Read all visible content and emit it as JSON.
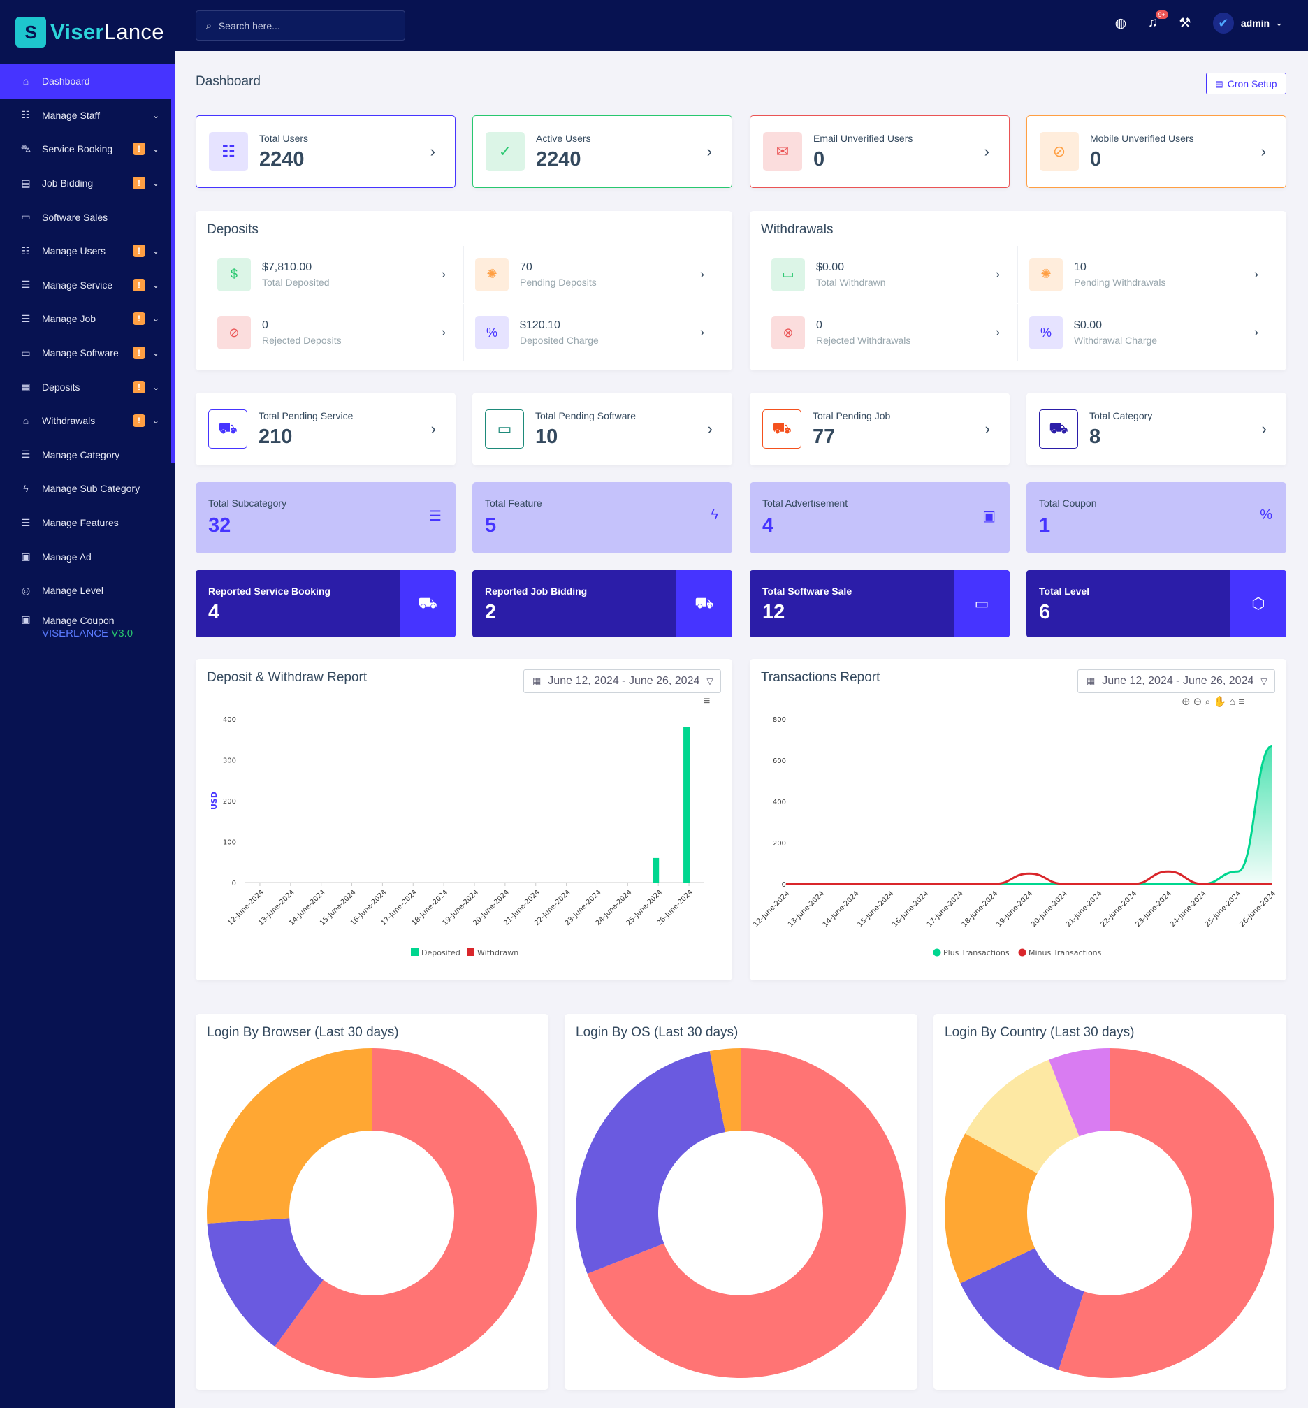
{
  "brand": {
    "logo_letter": "S",
    "name_a": "Viser",
    "name_b": "Lance",
    "version_a": "VISERLANCE",
    "version_b": "V3.0"
  },
  "sidebar": {
    "items": [
      {
        "label": "Dashboard",
        "icon": "home-icon",
        "glyph": "⌂",
        "badge": "",
        "chevron": false,
        "active": true
      },
      {
        "label": "Manage Staff",
        "icon": "users-icon",
        "glyph": "☷",
        "badge": "",
        "chevron": true
      },
      {
        "label": "Service Booking",
        "icon": "basket-icon",
        "glyph": "⛍",
        "badge": "!",
        "chevron": true
      },
      {
        "label": "Job Bidding",
        "icon": "briefcase-icon",
        "glyph": "▤",
        "badge": "!",
        "chevron": true
      },
      {
        "label": "Software Sales",
        "icon": "laptop-icon",
        "glyph": "▭",
        "badge": "",
        "chevron": false
      },
      {
        "label": "Manage Users",
        "icon": "users-icon",
        "glyph": "☷",
        "badge": "!",
        "chevron": true
      },
      {
        "label": "Manage Service",
        "icon": "list-icon",
        "glyph": "☰",
        "badge": "!",
        "chevron": true
      },
      {
        "label": "Manage Job",
        "icon": "list-icon",
        "glyph": "☰",
        "badge": "!",
        "chevron": true
      },
      {
        "label": "Manage Software",
        "icon": "laptop-icon",
        "glyph": "▭",
        "badge": "!",
        "chevron": true
      },
      {
        "label": "Deposits",
        "icon": "file-icon",
        "glyph": "▦",
        "badge": "!",
        "chevron": true
      },
      {
        "label": "Withdrawals",
        "icon": "bank-icon",
        "glyph": "⌂",
        "badge": "!",
        "chevron": true
      },
      {
        "label": "Manage Category",
        "icon": "list-icon",
        "glyph": "☰",
        "badge": "",
        "chevron": false
      },
      {
        "label": "Manage Sub Category",
        "icon": "bolt-icon",
        "glyph": "ϟ",
        "badge": "",
        "chevron": false
      },
      {
        "label": "Manage Features",
        "icon": "list-icon",
        "glyph": "☰",
        "badge": "",
        "chevron": false
      },
      {
        "label": "Manage Ad",
        "icon": "ad-icon",
        "glyph": "▣",
        "badge": "",
        "chevron": false
      },
      {
        "label": "Manage Level",
        "icon": "level-icon",
        "glyph": "◎",
        "badge": "",
        "chevron": false
      },
      {
        "label": "Manage Coupon",
        "icon": "coupon-icon",
        "glyph": "▣",
        "badge": "",
        "chevron": false
      }
    ]
  },
  "header": {
    "search_placeholder": "Search here...",
    "notif_count": "9+",
    "admin_name": "admin"
  },
  "page": {
    "title": "Dashboard",
    "cron_label": "Cron Setup"
  },
  "users_widgets": [
    {
      "title": "Total Users",
      "value": "2240",
      "color": "#4634ff",
      "bg": "#e6e3ff",
      "icon": "users-icon",
      "glyph": "☷"
    },
    {
      "title": "Active Users",
      "value": "2240",
      "color": "#28c76f",
      "bg": "#dcf5e7",
      "icon": "user-check-icon",
      "glyph": "✓"
    },
    {
      "title": "Email Unverified Users",
      "value": "0",
      "color": "#ea5455",
      "bg": "#fbdddd",
      "icon": "envelope-icon",
      "glyph": "✉"
    },
    {
      "title": "Mobile Unverified Users",
      "value": "0",
      "color": "#ff9f43",
      "bg": "#ffeddc",
      "icon": "mobile-slash-icon",
      "glyph": "⊘"
    }
  ],
  "deposits": {
    "title": "Deposits",
    "items": [
      {
        "value": "$7,810.00",
        "label": "Total Deposited",
        "color": "#28c76f",
        "bg": "#dcf5e7",
        "icon": "hand-money-icon",
        "glyph": "$"
      },
      {
        "value": "70",
        "label": "Pending Deposits",
        "color": "#ff9f43",
        "bg": "#ffeddc",
        "icon": "spinner-icon",
        "glyph": "✺"
      },
      {
        "value": "0",
        "label": "Rejected Deposits",
        "color": "#ea5455",
        "bg": "#fbdddd",
        "icon": "ban-icon",
        "glyph": "⊘"
      },
      {
        "value": "$120.10",
        "label": "Deposited Charge",
        "color": "#4634ff",
        "bg": "#e6e3ff",
        "icon": "percent-icon",
        "glyph": "%"
      }
    ]
  },
  "withdrawals": {
    "title": "Withdrawals",
    "items": [
      {
        "value": "$0.00",
        "label": "Total Withdrawn",
        "color": "#28c76f",
        "bg": "#dcf5e7",
        "icon": "card-icon",
        "glyph": "▭"
      },
      {
        "value": "10",
        "label": "Pending Withdrawals",
        "color": "#ff9f43",
        "bg": "#ffeddc",
        "icon": "spinner-icon",
        "glyph": "✺"
      },
      {
        "value": "0",
        "label": "Rejected Withdrawals",
        "color": "#ea5455",
        "bg": "#fbdddd",
        "icon": "times-circle-icon",
        "glyph": "⊗"
      },
      {
        "value": "$0.00",
        "label": "Withdrawal Charge",
        "color": "#4634ff",
        "bg": "#e6e3ff",
        "icon": "percent-icon",
        "glyph": "%"
      }
    ]
  },
  "pending_widgets": [
    {
      "title": "Total Pending Service",
      "value": "210",
      "color": "#4634ff",
      "icon": "car-icon",
      "glyph": "⛟"
    },
    {
      "title": "Total Pending Software",
      "value": "10",
      "color": "#1e8a7a",
      "icon": "laptop-icon",
      "glyph": "▭"
    },
    {
      "title": "Total Pending Job",
      "value": "77",
      "color": "#f4511e",
      "icon": "car-icon",
      "glyph": "⛟"
    },
    {
      "title": "Total Category",
      "value": "8",
      "color": "#2b1da8",
      "icon": "car-icon",
      "glyph": "⛟"
    }
  ],
  "light_widgets": [
    {
      "title": "Total Subcategory",
      "value": "32",
      "icon": "list-icon",
      "glyph": "☰"
    },
    {
      "title": "Total Feature",
      "value": "5",
      "icon": "bolt-icon",
      "glyph": "ϟ"
    },
    {
      "title": "Total Advertisement",
      "value": "4",
      "icon": "ad-icon",
      "glyph": "▣"
    },
    {
      "title": "Total Coupon",
      "value": "1",
      "icon": "percent-icon",
      "glyph": "%"
    }
  ],
  "dark_widgets": [
    {
      "title": "Reported Service Booking",
      "value": "4",
      "icon": "car-icon",
      "glyph": "⛟"
    },
    {
      "title": "Reported Job Bidding",
      "value": "2",
      "icon": "car-icon",
      "glyph": "⛟"
    },
    {
      "title": "Total Software Sale",
      "value": "12",
      "icon": "laptop-icon",
      "glyph": "▭"
    },
    {
      "title": "Total Level",
      "value": "6",
      "icon": "level-icon",
      "glyph": "⬡"
    }
  ],
  "date_range": "June 12, 2024 - June 26, 2024",
  "chart_data": [
    {
      "type": "bar",
      "title": "Deposit & Withdraw Report",
      "ylabel": "USD",
      "ylim": [
        0,
        400
      ],
      "yticks": [
        0,
        100,
        200,
        300,
        400
      ],
      "categories": [
        "12-June-2024",
        "13-June-2024",
        "14-June-2024",
        "15-June-2024",
        "16-June-2024",
        "17-June-2024",
        "18-June-2024",
        "19-June-2024",
        "20-June-2024",
        "21-June-2024",
        "22-June-2024",
        "23-June-2024",
        "24-June-2024",
        "25-June-2024",
        "26-June-2024"
      ],
      "series": [
        {
          "name": "Deposited",
          "color": "#00d68f",
          "values": [
            0,
            0,
            0,
            0,
            0,
            0,
            0,
            0,
            0,
            0,
            0,
            0,
            0,
            60,
            380
          ]
        },
        {
          "name": "Withdrawn",
          "color": "#d9262b",
          "values": [
            0,
            0,
            0,
            0,
            0,
            0,
            0,
            0,
            0,
            0,
            0,
            0,
            0,
            0,
            0
          ]
        }
      ],
      "legend": "bottom"
    },
    {
      "type": "area",
      "title": "Transactions Report",
      "ylim": [
        0,
        800
      ],
      "yticks": [
        0,
        200,
        400,
        600,
        800
      ],
      "categories": [
        "12-June-2024",
        "13-June-2024",
        "14-June-2024",
        "15-June-2024",
        "16-June-2024",
        "17-June-2024",
        "18-June-2024",
        "19-June-2024",
        "20-June-2024",
        "21-June-2024",
        "22-June-2024",
        "23-June-2024",
        "24-June-2024",
        "25-June-2024",
        "26-June-2024"
      ],
      "series": [
        {
          "name": "Plus Transactions",
          "color": "#00d68f",
          "values": [
            0,
            0,
            0,
            0,
            0,
            0,
            0,
            0,
            0,
            0,
            0,
            0,
            0,
            60,
            670
          ]
        },
        {
          "name": "Minus Transactions",
          "color": "#d9262b",
          "values": [
            0,
            0,
            0,
            0,
            0,
            0,
            0,
            50,
            0,
            0,
            0,
            60,
            0,
            0,
            0
          ]
        }
      ],
      "legend": "bottom"
    },
    {
      "type": "pie",
      "title": "Login By Browser (Last 30 days)",
      "slices": [
        {
          "color": "#ff7474",
          "value": 60
        },
        {
          "color": "#6a5ae0",
          "value": 14
        },
        {
          "color": "#ffa733",
          "value": 26
        }
      ]
    },
    {
      "type": "pie",
      "title": "Login By OS (Last 30 days)",
      "slices": [
        {
          "color": "#ff7474",
          "value": 69
        },
        {
          "color": "#6a5ae0",
          "value": 28
        },
        {
          "color": "#ffa733",
          "value": 3
        }
      ]
    },
    {
      "type": "pie",
      "title": "Login By Country (Last 30 days)",
      "slices": [
        {
          "color": "#ff7474",
          "value": 55
        },
        {
          "color": "#6a5ae0",
          "value": 13
        },
        {
          "color": "#ffa733",
          "value": 15
        },
        {
          "color": "#fde8a3",
          "value": 11
        },
        {
          "color": "#d97cf2",
          "value": 6
        }
      ]
    }
  ]
}
